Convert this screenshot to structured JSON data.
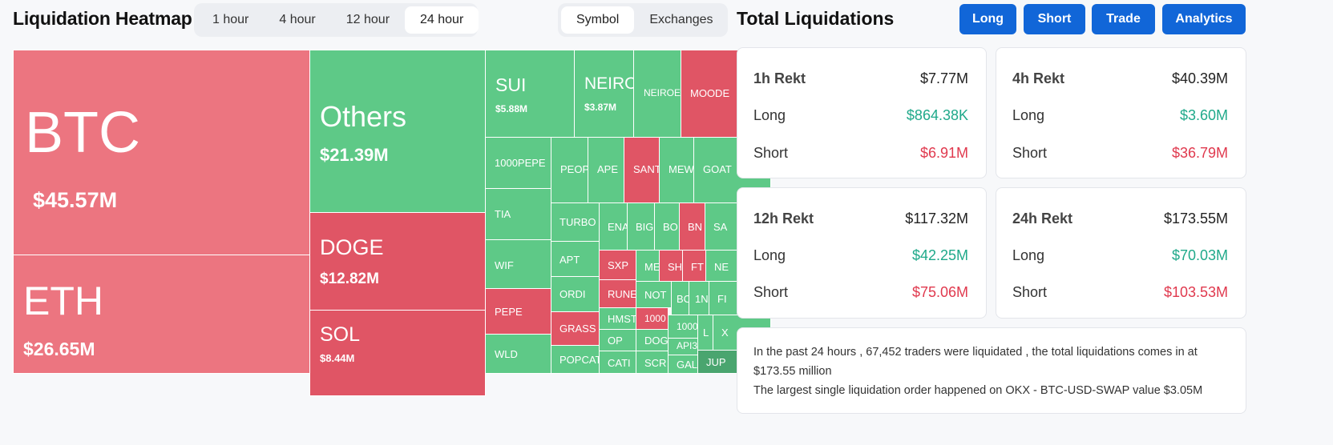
{
  "heatmap": {
    "title": "Liquidation Heatmap",
    "time_tabs": [
      "1 hour",
      "4 hour",
      "12 hour",
      "24 hour"
    ],
    "active_time_tab": "24 hour",
    "view_tabs": [
      "Symbol",
      "Exchanges"
    ],
    "active_view_tab": "Symbol",
    "cells": {
      "btc": {
        "symbol": "BTC",
        "value": "$45.57M"
      },
      "eth": {
        "symbol": "ETH",
        "value": "$26.65M"
      },
      "others": {
        "symbol": "Others",
        "value": "$21.39M"
      },
      "doge": {
        "symbol": "DOGE",
        "value": "$12.82M"
      },
      "sol": {
        "symbol": "SOL",
        "value": "$8.44M"
      },
      "sui": {
        "symbol": "SUI",
        "value": "$5.88M"
      },
      "neiro": {
        "symbol": "NEIRO",
        "value": "$3.87M"
      },
      "neiroe": {
        "symbol": "NEIROE"
      },
      "moode": {
        "symbol": "MOODE"
      },
      "pepe1000": {
        "symbol": "1000PEPE"
      },
      "peop": {
        "symbol": "PEOP"
      },
      "ape": {
        "symbol": "APE"
      },
      "sant": {
        "symbol": "SANT"
      },
      "mew": {
        "symbol": "MEW"
      },
      "goat": {
        "symbol": "GOAT"
      },
      "tia": {
        "symbol": "TIA"
      },
      "turbo": {
        "symbol": "TURBO"
      },
      "ena": {
        "symbol": "ENA"
      },
      "big": {
        "symbol": "BIG"
      },
      "bo": {
        "symbol": "BO"
      },
      "bn": {
        "symbol": "BN"
      },
      "sa": {
        "symbol": "SA"
      },
      "wif": {
        "symbol": "WIF"
      },
      "apt": {
        "symbol": "APT"
      },
      "sxp": {
        "symbol": "SXP"
      },
      "me": {
        "symbol": "ME"
      },
      "sh": {
        "symbol": "SH"
      },
      "ft": {
        "symbol": "FT"
      },
      "ne": {
        "symbol": "NE"
      },
      "ordi": {
        "symbol": "ORDI"
      },
      "rune": {
        "symbol": "RUNE"
      },
      "not": {
        "symbol": "NOT"
      },
      "bc": {
        "symbol": "BC"
      },
      "onei": {
        "symbol": "1N"
      },
      "fi": {
        "symbol": "FI"
      },
      "pepe": {
        "symbol": "PEPE"
      },
      "grass": {
        "symbol": "GRASS"
      },
      "hmst": {
        "symbol": "HMST"
      },
      "k1000": {
        "symbol": "1000"
      },
      "k1000b": {
        "symbol": "1000"
      },
      "l": {
        "symbol": "L"
      },
      "x": {
        "symbol": "X"
      },
      "op": {
        "symbol": "OP"
      },
      "dog": {
        "symbol": "DOG"
      },
      "api3": {
        "symbol": "API3"
      },
      "wld": {
        "symbol": "WLD"
      },
      "popcat": {
        "symbol": "POPCAT"
      },
      "cati": {
        "symbol": "CATI"
      },
      "scr": {
        "symbol": "SCR"
      },
      "gal": {
        "symbol": "GAL"
      },
      "jup": {
        "symbol": "JUP"
      }
    }
  },
  "totals": {
    "title": "Total Liquidations",
    "buttons": [
      "Long",
      "Short",
      "Trade",
      "Analytics"
    ],
    "long_label": "Long",
    "short_label": "Short",
    "cards": [
      {
        "label": "1h Rekt",
        "total": "$7.77M",
        "long": "$864.38K",
        "short": "$6.91M"
      },
      {
        "label": "4h Rekt",
        "total": "$40.39M",
        "long": "$3.60M",
        "short": "$36.79M"
      },
      {
        "label": "12h Rekt",
        "total": "$117.32M",
        "long": "$42.25M",
        "short": "$75.06M"
      },
      {
        "label": "24h Rekt",
        "total": "$173.55M",
        "long": "$70.03M",
        "short": "$103.53M"
      }
    ],
    "summary_line1": "In the past 24 hours , 67,452 traders were liquidated , the total liquidations comes in at $173.55 million",
    "summary_line2": "The largest single liquidation order happened on OKX - BTC-USD-SWAP value $3.05M"
  },
  "colors": {
    "long": "#1fa98a",
    "short": "#e0394e",
    "accent": "#1166d8",
    "tile_green": "#5ec987",
    "tile_red": "#e05565"
  }
}
